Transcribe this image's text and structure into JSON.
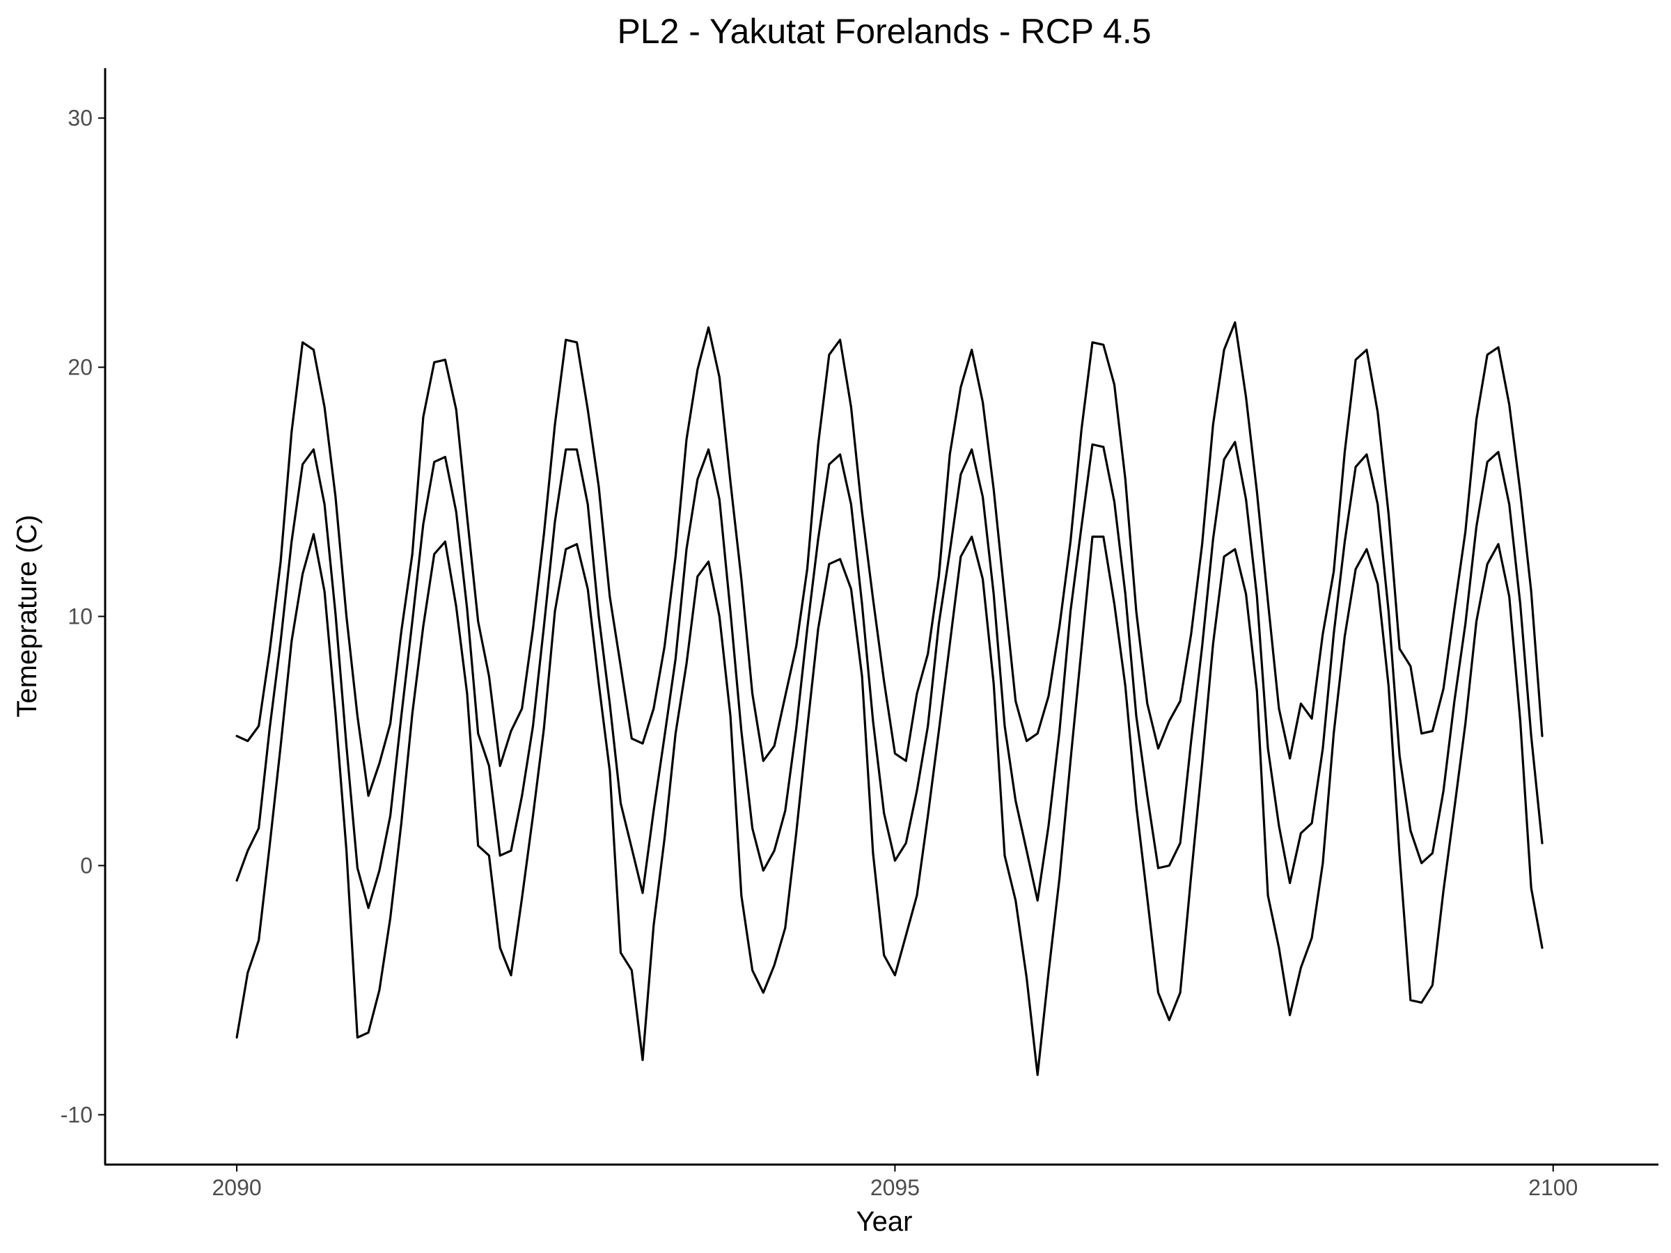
{
  "chart_data": {
    "type": "line",
    "title": "PL2 - Yakutat Forelands - RCP 4.5",
    "xlabel": "Year",
    "ylabel": "Temeprature (C)",
    "xlim": [
      2089.0,
      2100.8
    ],
    "ylim": [
      -12.0,
      32.0
    ],
    "x_ticks": [
      2090,
      2095,
      2100
    ],
    "y_ticks": [
      -10,
      0,
      10,
      20,
      30
    ],
    "grid": false,
    "legend": "none",
    "line_color": "#000000",
    "x_start": 2090,
    "x_step": 0.0833333,
    "series": [
      {
        "values": [
          5.2,
          5.0,
          5.6,
          8.6,
          12.2,
          17.4,
          21.0,
          20.7,
          18.4,
          14.8,
          10.0,
          6.0,
          2.8,
          4.1,
          5.7,
          9.4,
          12.5,
          18.0,
          20.2,
          20.3,
          18.3,
          14.0,
          9.8,
          7.6,
          4.0,
          5.4,
          6.3,
          9.5,
          13.3,
          17.7,
          21.1,
          21.0,
          18.3,
          15.2,
          10.8,
          8.0,
          5.1,
          4.9,
          6.3,
          8.8,
          12.4,
          17.1,
          19.9,
          21.6,
          19.6,
          15.4,
          11.5,
          6.9,
          4.2,
          4.8,
          6.8,
          8.8,
          11.9,
          16.9,
          20.5,
          21.1,
          18.4,
          14.2,
          10.7,
          7.4,
          4.5,
          4.2,
          6.9,
          8.5,
          11.6,
          16.5,
          19.2,
          20.7,
          18.6,
          15.1,
          10.8,
          6.6,
          5.0,
          5.3,
          6.8,
          9.6,
          13.0,
          17.5,
          21.0,
          20.9,
          19.3,
          15.5,
          10.2,
          6.5,
          4.7,
          5.8,
          6.6,
          9.3,
          12.9,
          17.7,
          20.7,
          21.8,
          18.8,
          15.0,
          10.6,
          6.3,
          4.3,
          6.5,
          5.9,
          9.3,
          11.8,
          16.6,
          20.3,
          20.7,
          18.2,
          14.1,
          8.7,
          8.0,
          5.3,
          5.4,
          7.1,
          10.3,
          13.4,
          17.9,
          20.5,
          20.8,
          18.5,
          15.0,
          11.0,
          5.2
        ]
      },
      {
        "values": [
          -0.6,
          0.6,
          1.5,
          5.5,
          9.0,
          13.0,
          16.1,
          16.7,
          14.5,
          10.1,
          4.8,
          -0.1,
          -1.7,
          -0.2,
          2.0,
          6.0,
          9.8,
          13.7,
          16.2,
          16.4,
          14.2,
          10.3,
          5.3,
          4.0,
          0.4,
          0.6,
          2.8,
          5.6,
          9.6,
          13.8,
          16.7,
          16.7,
          14.5,
          10.0,
          6.5,
          2.5,
          0.7,
          -1.1,
          2.2,
          5.2,
          8.3,
          12.7,
          15.5,
          16.7,
          14.7,
          10.2,
          5.4,
          1.5,
          -0.2,
          0.6,
          2.2,
          5.5,
          9.5,
          13.1,
          16.1,
          16.5,
          14.5,
          10.5,
          5.8,
          2.1,
          0.2,
          0.9,
          3.0,
          5.6,
          9.7,
          12.6,
          15.7,
          16.7,
          14.8,
          10.9,
          5.6,
          2.6,
          0.6,
          -1.4,
          1.6,
          5.4,
          10.2,
          13.6,
          16.9,
          16.8,
          14.6,
          10.9,
          6.0,
          2.8,
          -0.1,
          0.0,
          0.9,
          5.0,
          8.8,
          13.1,
          16.3,
          17.0,
          14.7,
          10.8,
          4.7,
          1.6,
          -0.7,
          1.3,
          1.7,
          4.7,
          9.3,
          13.0,
          16.0,
          16.5,
          14.5,
          10.2,
          4.4,
          1.4,
          0.1,
          0.5,
          3.0,
          6.6,
          9.7,
          13.6,
          16.2,
          16.6,
          14.5,
          10.5,
          5.2,
          0.9
        ]
      },
      {
        "values": [
          -6.9,
          -4.3,
          -3.0,
          0.8,
          4.8,
          9.0,
          11.7,
          13.3,
          11.0,
          6.1,
          0.6,
          -6.9,
          -6.7,
          -5.0,
          -2.1,
          1.7,
          6.1,
          9.6,
          12.5,
          13.0,
          10.4,
          6.9,
          0.8,
          0.4,
          -3.3,
          -4.4,
          -1.3,
          2.0,
          5.5,
          10.2,
          12.7,
          12.9,
          11.1,
          7.3,
          3.8,
          -3.5,
          -4.2,
          -7.8,
          -2.4,
          1.1,
          5.3,
          8.1,
          11.6,
          12.2,
          10.0,
          6.0,
          -1.2,
          -4.2,
          -5.1,
          -4.0,
          -2.5,
          1.3,
          5.5,
          9.5,
          12.1,
          12.3,
          11.1,
          7.6,
          0.5,
          -3.6,
          -4.4,
          -2.8,
          -1.2,
          2.0,
          5.4,
          8.9,
          12.4,
          13.2,
          11.5,
          7.3,
          0.4,
          -1.4,
          -4.5,
          -8.4,
          -4.3,
          -0.5,
          4.2,
          8.7,
          13.2,
          13.2,
          10.5,
          7.2,
          2.4,
          -1.3,
          -5.1,
          -6.2,
          -5.1,
          -0.4,
          4.1,
          8.9,
          12.4,
          12.7,
          10.9,
          7.0,
          -1.2,
          -3.3,
          -6.0,
          -4.1,
          -2.9,
          0.1,
          5.3,
          9.2,
          11.9,
          12.7,
          11.3,
          7.2,
          0.4,
          -5.4,
          -5.5,
          -4.8,
          -1.0,
          2.3,
          5.7,
          9.8,
          12.1,
          12.9,
          10.8,
          5.8,
          -0.9,
          -3.3
        ]
      }
    ]
  }
}
